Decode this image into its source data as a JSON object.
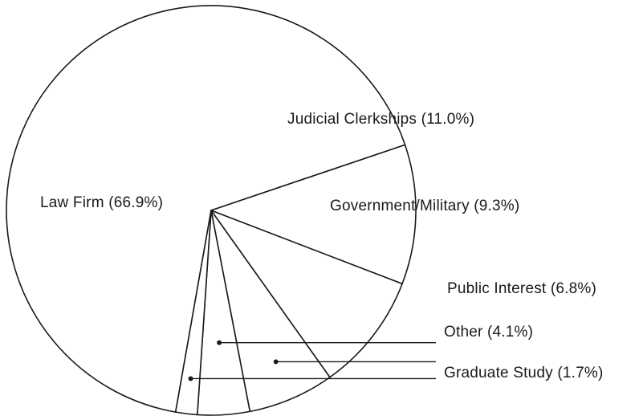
{
  "chart_data": {
    "type": "pie",
    "slices": [
      {
        "label": "Law Firm (66.9%)",
        "category": "Law Firm",
        "value": 66.9
      },
      {
        "label": "Judicial Clerkships (11.0%)",
        "category": "Judicial Clerkships",
        "value": 11.0
      },
      {
        "label": "Government/Military (9.3%)",
        "category": "Government/Military",
        "value": 9.3
      },
      {
        "label": "Public Interest (6.8%)",
        "category": "Public Interest",
        "value": 6.8
      },
      {
        "label": "Other (4.1%)",
        "category": "Other",
        "value": 4.1
      },
      {
        "label": "Graduate Study (1.7%)",
        "category": "Graduate Study",
        "value": 1.7
      }
    ],
    "fill_color": "#ffffff",
    "stroke_color": "#1a1a1a",
    "legend": "none"
  }
}
